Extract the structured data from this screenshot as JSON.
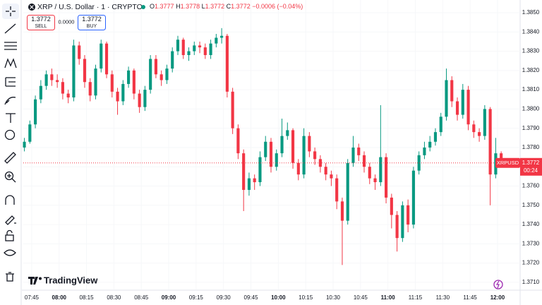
{
  "header": {
    "symbol": "XRP / U.S. Dollar · 1 · CRYPTO",
    "ohlc": [
      {
        "label": "O",
        "value": "1.3777"
      },
      {
        "label": "H",
        "value": "1.3778"
      },
      {
        "label": "L",
        "value": "1.3772"
      },
      {
        "label": "C",
        "value": "1.3772"
      }
    ],
    "change": "−0.0006 (−0.04%)"
  },
  "trade": {
    "sell_price": "1.3772",
    "sell_label": "SELL",
    "spread": "0.0000",
    "buy_price": "1.3772",
    "buy_label": "BUY"
  },
  "price_tag": {
    "symbol": "XRPUSD",
    "countdown": "00:24"
  },
  "watermark": "TradingView",
  "chart_data": {
    "type": "candlestick",
    "up_color": "#089981",
    "down_color": "#f23645",
    "grid": true,
    "x": [
      461,
      464,
      467,
      470,
      473,
      476,
      479,
      482,
      485,
      488,
      491,
      494,
      497,
      500,
      503,
      506,
      509,
      512,
      515,
      518,
      521,
      524,
      527,
      530,
      533,
      536,
      539,
      542,
      545,
      548,
      551,
      554,
      557,
      560,
      563,
      566,
      569,
      572,
      575,
      578,
      581,
      584,
      587,
      590,
      593,
      596,
      599,
      602,
      605,
      608,
      611,
      614,
      617,
      620,
      623,
      626,
      629,
      632,
      635,
      638,
      641,
      644,
      647,
      650,
      653,
      656,
      659,
      662,
      665,
      668,
      671,
      674,
      677,
      680,
      683,
      686,
      689,
      692,
      695,
      698,
      701,
      704,
      707,
      710,
      713,
      716,
      719,
      722
    ],
    "open": [
      1.378,
      1.3783,
      1.3792,
      1.3805,
      1.3812,
      1.3818,
      1.3815,
      1.3814,
      1.3808,
      1.3806,
      1.3833,
      1.3826,
      1.3814,
      1.3807,
      1.3821,
      1.3834,
      1.3818,
      1.3809,
      1.3804,
      1.3813,
      1.382,
      1.3808,
      1.3801,
      1.381,
      1.3826,
      1.3818,
      1.3815,
      1.3821,
      1.383,
      1.3836,
      1.3828,
      1.383,
      1.3833,
      1.3832,
      1.3828,
      1.3834,
      1.3837,
      1.3838,
      1.3809,
      1.379,
      1.3777,
      1.3758,
      1.3764,
      1.3762,
      1.3775,
      1.3783,
      1.377,
      1.3777,
      1.3786,
      1.3789,
      1.3772,
      1.3766,
      1.3786,
      1.3778,
      1.3774,
      1.377,
      1.3766,
      1.3764,
      1.3752,
      1.3742,
      1.3772,
      1.378,
      1.3776,
      1.377,
      1.3764,
      1.3762,
      1.3775,
      1.3754,
      1.3745,
      1.3733,
      1.375,
      1.374,
      1.3768,
      1.3776,
      1.378,
      1.3783,
      1.3788,
      1.3796,
      1.3815,
      1.3804,
      1.3797,
      1.381,
      1.3792,
      1.3788,
      1.3786,
      1.38,
      1.3766,
      1.3777
    ],
    "high": [
      1.3785,
      1.3794,
      1.3807,
      1.3815,
      1.382,
      1.3821,
      1.3818,
      1.3816,
      1.381,
      1.3836,
      1.3835,
      1.3828,
      1.3816,
      1.3823,
      1.3836,
      1.3835,
      1.382,
      1.3811,
      1.3815,
      1.3822,
      1.3821,
      1.381,
      1.3812,
      1.3828,
      1.3828,
      1.382,
      1.3823,
      1.3832,
      1.3838,
      1.3837,
      1.3832,
      1.3835,
      1.3835,
      1.3834,
      1.3836,
      1.3839,
      1.3842,
      1.3839,
      1.3811,
      1.3792,
      1.3779,
      1.3767,
      1.3766,
      1.3778,
      1.3786,
      1.3785,
      1.3779,
      1.3795,
      1.3793,
      1.379,
      1.3774,
      1.379,
      1.3788,
      1.378,
      1.3776,
      1.3772,
      1.3768,
      1.3766,
      1.3754,
      1.3774,
      1.3786,
      1.3782,
      1.3778,
      1.3772,
      1.3766,
      1.3802,
      1.3777,
      1.3756,
      1.3747,
      1.3752,
      1.3753,
      1.377,
      1.3778,
      1.3783,
      1.3786,
      1.379,
      1.3798,
      1.3821,
      1.3817,
      1.3806,
      1.3813,
      1.3812,
      1.3794,
      1.379,
      1.3802,
      1.3801,
      1.3785,
      1.3778
    ],
    "low": [
      1.3778,
      1.3782,
      1.379,
      1.3803,
      1.381,
      1.3812,
      1.3811,
      1.3805,
      1.3803,
      1.3804,
      1.3823,
      1.3811,
      1.3804,
      1.3805,
      1.3819,
      1.3816,
      1.3806,
      1.3797,
      1.3802,
      1.3811,
      1.3805,
      1.3798,
      1.3799,
      1.3808,
      1.3816,
      1.3812,
      1.3813,
      1.3819,
      1.3828,
      1.3826,
      1.3825,
      1.3828,
      1.3829,
      1.3826,
      1.3826,
      1.3832,
      1.3834,
      1.3806,
      1.3787,
      1.3774,
      1.3747,
      1.3755,
      1.3758,
      1.376,
      1.3773,
      1.3767,
      1.3768,
      1.3775,
      1.3784,
      1.3769,
      1.3763,
      1.3764,
      1.3775,
      1.3771,
      1.3767,
      1.3763,
      1.376,
      1.3748,
      1.3719,
      1.374,
      1.377,
      1.3773,
      1.3767,
      1.3761,
      1.3758,
      1.376,
      1.3751,
      1.3738,
      1.3726,
      1.3731,
      1.3736,
      1.3738,
      1.3766,
      1.3774,
      1.3778,
      1.3781,
      1.3786,
      1.3794,
      1.3801,
      1.3794,
      1.3795,
      1.3789,
      1.3785,
      1.3783,
      1.3784,
      1.375,
      1.3764,
      1.3772
    ],
    "close": [
      1.3783,
      1.3792,
      1.3805,
      1.3812,
      1.3818,
      1.3815,
      1.3814,
      1.3808,
      1.3806,
      1.3833,
      1.3826,
      1.3814,
      1.3807,
      1.3821,
      1.3834,
      1.3818,
      1.3809,
      1.3804,
      1.3813,
      1.382,
      1.3808,
      1.3801,
      1.381,
      1.3826,
      1.3818,
      1.3815,
      1.3821,
      1.383,
      1.3836,
      1.3828,
      1.383,
      1.3833,
      1.3832,
      1.3828,
      1.3834,
      1.3837,
      1.3838,
      1.3809,
      1.379,
      1.3777,
      1.3758,
      1.3764,
      1.3762,
      1.3775,
      1.3783,
      1.377,
      1.3777,
      1.3786,
      1.3789,
      1.3772,
      1.3766,
      1.3786,
      1.3778,
      1.3774,
      1.377,
      1.3766,
      1.3764,
      1.3752,
      1.3742,
      1.3772,
      1.378,
      1.3776,
      1.377,
      1.3764,
      1.3762,
      1.3775,
      1.3754,
      1.3745,
      1.3733,
      1.375,
      1.374,
      1.3768,
      1.3776,
      1.378,
      1.3783,
      1.3788,
      1.3796,
      1.3815,
      1.3804,
      1.3797,
      1.381,
      1.3792,
      1.3788,
      1.3786,
      1.38,
      1.3766,
      1.3777,
      1.3772
    ],
    "last_price": 1.3772,
    "xlim": [
      460.4,
      731.6
    ],
    "xticks": [
      {
        "value": 465,
        "label": "07:45"
      },
      {
        "value": 480,
        "label": "08:00"
      },
      {
        "value": 495,
        "label": "08:15"
      },
      {
        "value": 510,
        "label": "08:30"
      },
      {
        "value": 525,
        "label": "08:45"
      },
      {
        "value": 540,
        "label": "09:00"
      },
      {
        "value": 555,
        "label": "09:15"
      },
      {
        "value": 570,
        "label": "09:30"
      },
      {
        "value": 585,
        "label": "09:45"
      },
      {
        "value": 600,
        "label": "10:00"
      },
      {
        "value": 615,
        "label": "10:15"
      },
      {
        "value": 630,
        "label": "10:30"
      },
      {
        "value": 645,
        "label": "10:45"
      },
      {
        "value": 660,
        "label": "11:00"
      },
      {
        "value": 675,
        "label": "11:15"
      },
      {
        "value": 690,
        "label": "11:30"
      },
      {
        "value": 705,
        "label": "11:45"
      },
      {
        "value": 720,
        "label": "12:00"
      }
    ],
    "ylim": [
      1.37063,
      1.38566
    ],
    "yticks": [
      {
        "value": 1.371,
        "label": "1.3710"
      },
      {
        "value": 1.372,
        "label": "1.3720"
      },
      {
        "value": 1.373,
        "label": "1.3730"
      },
      {
        "value": 1.374,
        "label": "1.3740"
      },
      {
        "value": 1.375,
        "label": "1.3750"
      },
      {
        "value": 1.376,
        "label": "1.3760"
      },
      {
        "value": 1.377,
        "label": "1.3770"
      },
      {
        "value": 1.378,
        "label": "1.3780"
      },
      {
        "value": 1.379,
        "label": "1.3790"
      },
      {
        "value": 1.38,
        "label": "1.3800"
      },
      {
        "value": 1.381,
        "label": "1.3810"
      },
      {
        "value": 1.382,
        "label": "1.3820"
      },
      {
        "value": 1.383,
        "label": "1.3830"
      },
      {
        "value": 1.384,
        "label": "1.3840"
      },
      {
        "value": 1.385,
        "label": "1.3850"
      }
    ]
  }
}
